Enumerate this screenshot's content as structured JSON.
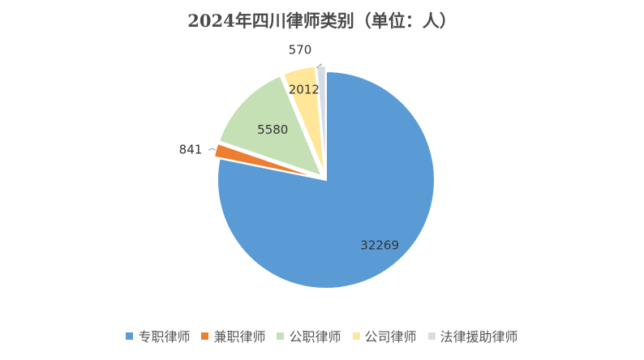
{
  "chart_data": {
    "type": "pie",
    "title": "2024年四川律师类别（单位：人）",
    "categories": [
      "专职律师",
      "兼职律师",
      "公职律师",
      "公司律师",
      "法律援助律师"
    ],
    "values": [
      32269,
      841,
      5580,
      2012,
      570
    ],
    "colors": [
      "#5b9bd5",
      "#ed7d31",
      "#c5e0b4",
      "#ffe699",
      "#d6dce5"
    ],
    "data_labels": [
      "32269",
      "841",
      "5580",
      "2012",
      "570"
    ],
    "legend_position": "bottom",
    "start_angle": "12 o'clock",
    "direction": "clockwise"
  }
}
